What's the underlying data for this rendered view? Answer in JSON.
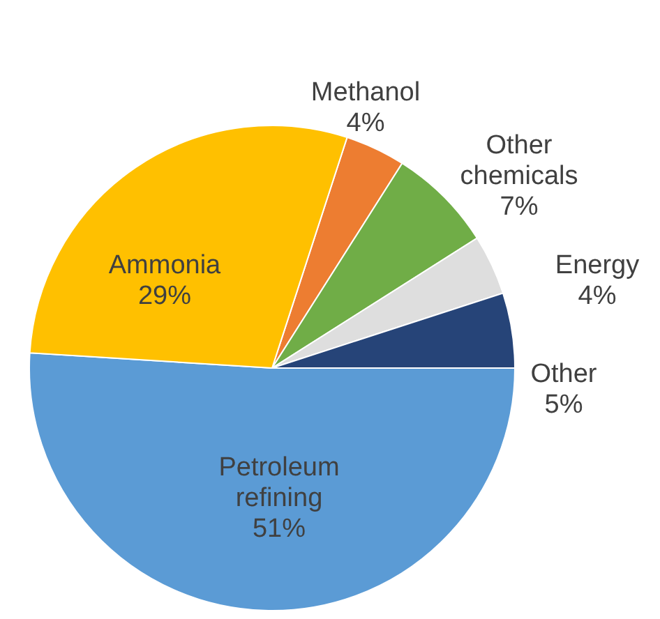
{
  "chart_data": {
    "type": "pie",
    "categories": [
      "Methanol",
      "Other chemicals",
      "Energy",
      "Other",
      "Petroleum refining",
      "Ammonia"
    ],
    "values": [
      4,
      7,
      4,
      5,
      51,
      29
    ],
    "colors": [
      "#ed7d31",
      "#70ad47",
      "#dedede",
      "#264478",
      "#5b9bd5",
      "#ffc000"
    ],
    "value_labels": [
      "4%",
      "7%",
      "4%",
      "5%",
      "51%",
      "29%"
    ]
  }
}
